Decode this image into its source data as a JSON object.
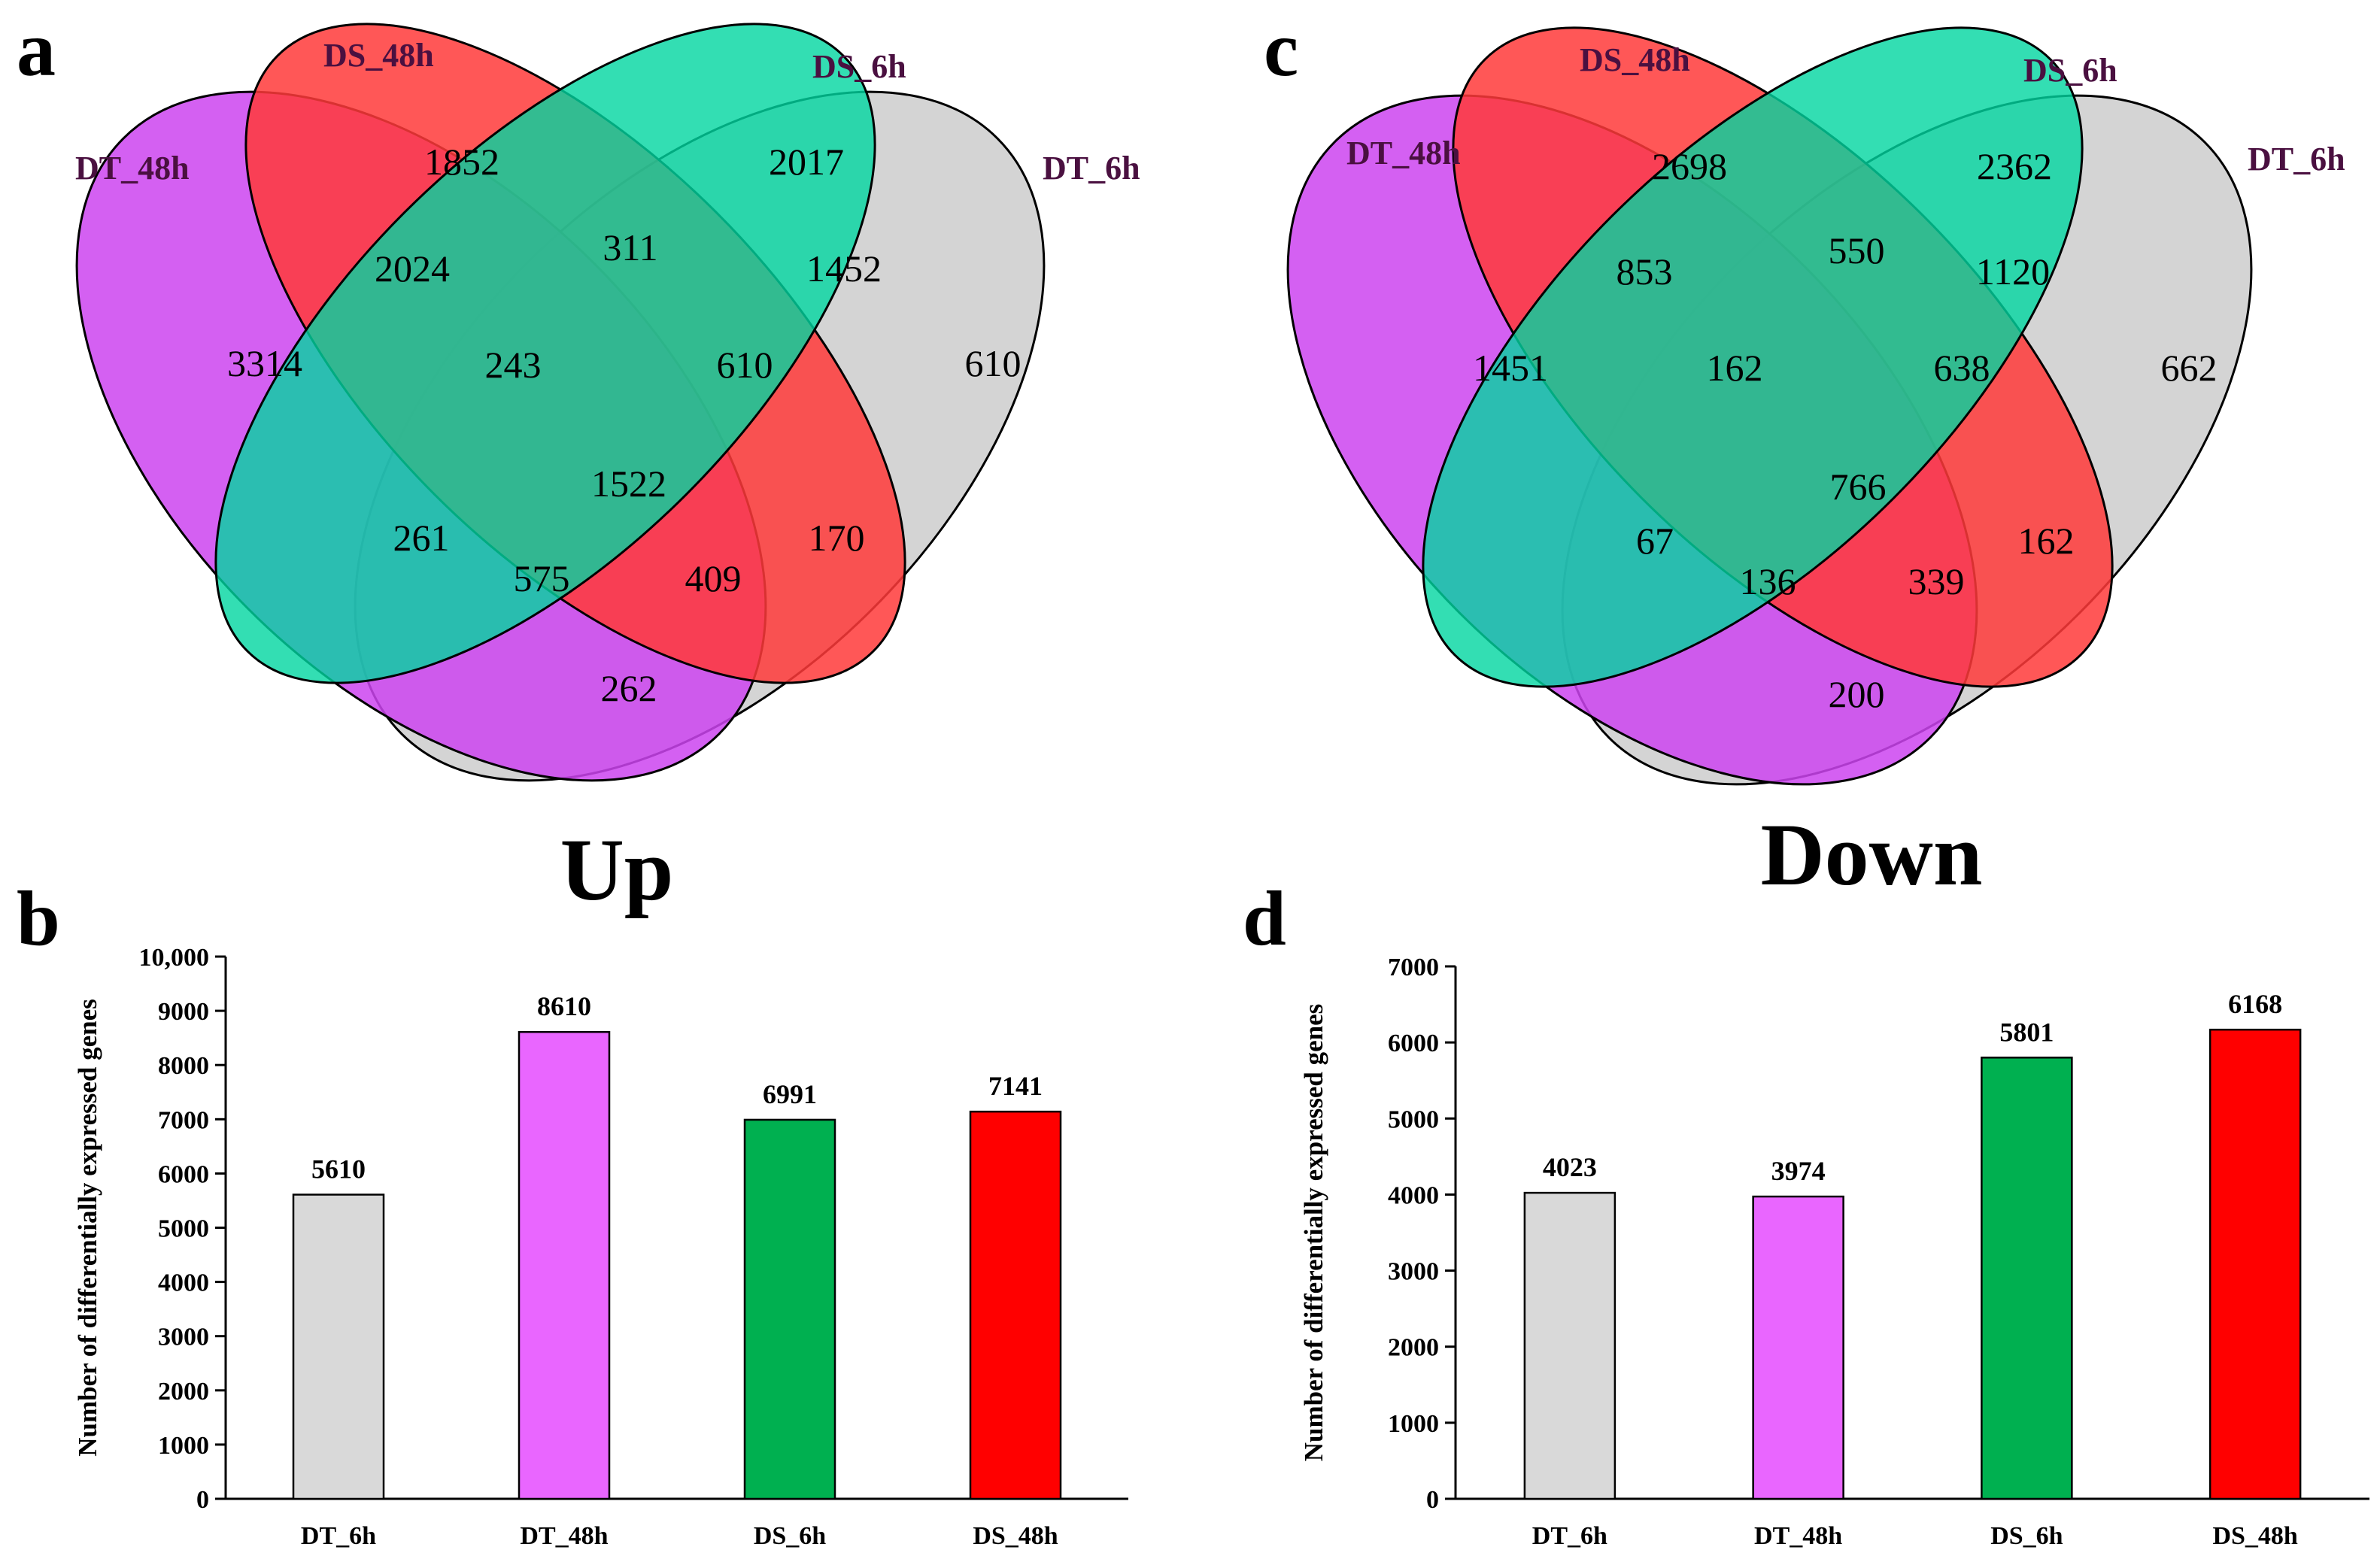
{
  "panels": {
    "a": "a",
    "b": "b",
    "c": "c",
    "d": "d"
  },
  "colors": {
    "dt48": "#cc44f0",
    "ds48": "#ff3a3a",
    "ds6": "#00d6a0",
    "dt6": "#d4d4d4",
    "bar_dt6": "#d9d9d9",
    "bar_dt48": "#e966ff",
    "bar_ds6": "#00b050",
    "bar_ds48": "#ff0000"
  },
  "venn_up": {
    "title": "Up",
    "sets": [
      "DT_48h",
      "DS_48h",
      "DS_6h",
      "DT_6h"
    ],
    "regions": {
      "dt48_only": "3314",
      "ds48_only": "1852",
      "ds6_only": "2017",
      "dt6_only": "610",
      "dt48_ds48": "2024",
      "ds48_ds6": "311",
      "ds6_dt6": "1452",
      "dt48_ds48_ds6": "243",
      "ds48_ds6_dt6": "610",
      "all": "1522",
      "dt48_ds6": "261",
      "ds48_dt6": "170",
      "dt48_ds6_dt6": "575",
      "dt48_ds48_dt6": "409",
      "dt48_dt6": "262"
    }
  },
  "venn_down": {
    "title": "Down",
    "sets": [
      "DT_48h",
      "DS_48h",
      "DS_6h",
      "DT_6h"
    ],
    "regions": {
      "dt48_only": "1451",
      "ds48_only": "2698",
      "ds6_only": "2362",
      "dt6_only": "662",
      "dt48_ds48": "853",
      "ds48_ds6": "550",
      "ds6_dt6": "1120",
      "dt48_ds48_ds6": "162",
      "ds48_ds6_dt6": "638",
      "all": "766",
      "dt48_ds6": "67",
      "ds48_dt6": "162",
      "dt48_ds6_dt6": "136",
      "dt48_ds48_dt6": "339",
      "dt48_dt6": "200"
    }
  },
  "chart_data": [
    {
      "type": "bar",
      "panel": "b",
      "categories": [
        "DT_6h",
        "DT_48h",
        "DS_6h",
        "DS_48h"
      ],
      "values": [
        5610,
        8610,
        6991,
        7141
      ],
      "data_labels": [
        "5610",
        "8610",
        "6991",
        "7141"
      ],
      "ylabel": "Number of differentially expressed genes",
      "ylim": [
        0,
        10000
      ],
      "yticks": [
        0,
        1000,
        2000,
        3000,
        4000,
        5000,
        6000,
        7000,
        8000,
        9000,
        10000
      ],
      "ytick_labels": [
        "0",
        "1000",
        "2000",
        "3000",
        "4000",
        "5000",
        "6000",
        "7000",
        "8000",
        "9000",
        "10,000"
      ],
      "bar_colors": [
        "#d9d9d9",
        "#e966ff",
        "#00b050",
        "#ff0000"
      ],
      "grid": false
    },
    {
      "type": "bar",
      "panel": "d",
      "categories": [
        "DT_6h",
        "DT_48h",
        "DS_6h",
        "DS_48h"
      ],
      "values": [
        4023,
        3974,
        5801,
        6168
      ],
      "data_labels": [
        "4023",
        "3974",
        "5801",
        "6168"
      ],
      "ylabel": "Number of differentially expressed genes",
      "ylim": [
        0,
        7000
      ],
      "yticks": [
        0,
        1000,
        2000,
        3000,
        4000,
        5000,
        6000,
        7000
      ],
      "ytick_labels": [
        "0",
        "1000",
        "2000",
        "3000",
        "4000",
        "5000",
        "6000",
        "7000"
      ],
      "bar_colors": [
        "#d9d9d9",
        "#e966ff",
        "#00b050",
        "#ff0000"
      ],
      "grid": false
    }
  ]
}
